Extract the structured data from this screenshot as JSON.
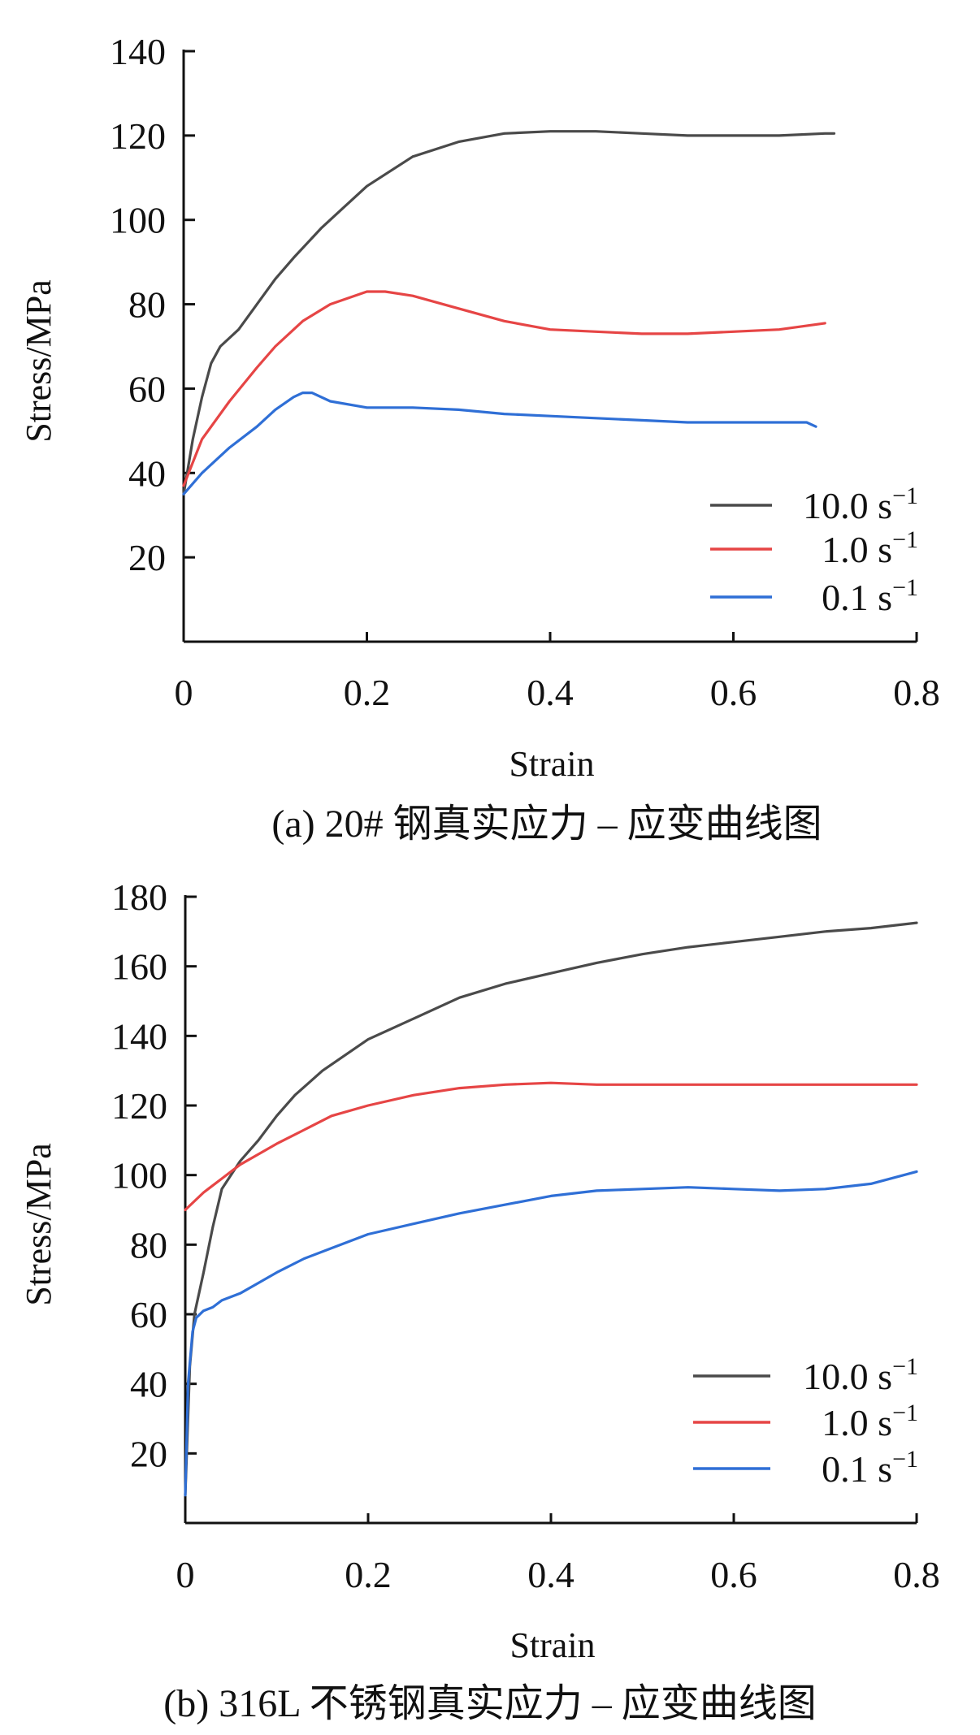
{
  "chart_data": [
    {
      "type": "line",
      "caption": "(a) 20# 钢真实应力 – 应变曲线图",
      "xlabel": "Strain",
      "ylabel": "Stress/MPa",
      "xlim": [
        0,
        0.8
      ],
      "ylim": [
        0,
        140
      ],
      "xticks": [
        "0",
        "0.2",
        "0.4",
        "0.6",
        "0.8"
      ],
      "yticks": [
        "20",
        "40",
        "60",
        "80",
        "100",
        "120",
        "140"
      ],
      "grid": false,
      "legend_position": "bottom-right",
      "series": [
        {
          "name": "10.0 s-1",
          "color": "#4a4a4a",
          "points": [
            [
              0,
              35
            ],
            [
              0.01,
              48
            ],
            [
              0.02,
              58
            ],
            [
              0.03,
              66
            ],
            [
              0.04,
              70
            ],
            [
              0.06,
              74
            ],
            [
              0.08,
              80
            ],
            [
              0.1,
              86
            ],
            [
              0.12,
              91
            ],
            [
              0.15,
              98
            ],
            [
              0.18,
              104
            ],
            [
              0.2,
              108
            ],
            [
              0.25,
              115
            ],
            [
              0.3,
              118.5
            ],
            [
              0.35,
              120.5
            ],
            [
              0.4,
              121
            ],
            [
              0.45,
              121
            ],
            [
              0.5,
              120.5
            ],
            [
              0.55,
              120
            ],
            [
              0.6,
              120
            ],
            [
              0.65,
              120
            ],
            [
              0.7,
              120.5
            ],
            [
              0.71,
              120.5
            ]
          ]
        },
        {
          "name": "1.0 s-1",
          "color": "#e64545",
          "points": [
            [
              0,
              37
            ],
            [
              0.02,
              48
            ],
            [
              0.05,
              57
            ],
            [
              0.08,
              65
            ],
            [
              0.1,
              70
            ],
            [
              0.13,
              76
            ],
            [
              0.16,
              80
            ],
            [
              0.2,
              83
            ],
            [
              0.22,
              83
            ],
            [
              0.25,
              82
            ],
            [
              0.3,
              79
            ],
            [
              0.35,
              76
            ],
            [
              0.4,
              74
            ],
            [
              0.45,
              73.5
            ],
            [
              0.5,
              73
            ],
            [
              0.55,
              73
            ],
            [
              0.6,
              73.5
            ],
            [
              0.65,
              74
            ],
            [
              0.7,
              75.5
            ]
          ]
        },
        {
          "name": "0.1 s-1",
          "color": "#2f6fd6",
          "points": [
            [
              0,
              35
            ],
            [
              0.02,
              40
            ],
            [
              0.05,
              46
            ],
            [
              0.08,
              51
            ],
            [
              0.1,
              55
            ],
            [
              0.12,
              58
            ],
            [
              0.13,
              59
            ],
            [
              0.14,
              59
            ],
            [
              0.16,
              57
            ],
            [
              0.2,
              55.5
            ],
            [
              0.25,
              55.5
            ],
            [
              0.3,
              55
            ],
            [
              0.35,
              54
            ],
            [
              0.4,
              53.5
            ],
            [
              0.45,
              53
            ],
            [
              0.5,
              52.5
            ],
            [
              0.55,
              52
            ],
            [
              0.6,
              52
            ],
            [
              0.65,
              52
            ],
            [
              0.68,
              52
            ],
            [
              0.69,
              51
            ]
          ]
        }
      ]
    },
    {
      "type": "line",
      "caption": "(b) 316L 不锈钢真实应力 – 应变曲线图",
      "xlabel": "Strain",
      "ylabel": "Stress/MPa",
      "xlim": [
        0,
        0.8
      ],
      "ylim": [
        0,
        180
      ],
      "xticks": [
        "0",
        "0.2",
        "0.4",
        "0.6",
        "0.8"
      ],
      "yticks": [
        "20",
        "40",
        "60",
        "80",
        "100",
        "120",
        "140",
        "160",
        "180"
      ],
      "grid": false,
      "legend_position": "bottom-right",
      "series": [
        {
          "name": "10.0 s-1",
          "color": "#4a4a4a",
          "points": [
            [
              0,
              8
            ],
            [
              0.005,
              45
            ],
            [
              0.01,
              60
            ],
            [
              0.02,
              72
            ],
            [
              0.03,
              85
            ],
            [
              0.04,
              96
            ],
            [
              0.06,
              104
            ],
            [
              0.08,
              110
            ],
            [
              0.1,
              117
            ],
            [
              0.12,
              123
            ],
            [
              0.15,
              130
            ],
            [
              0.2,
              139
            ],
            [
              0.25,
              145
            ],
            [
              0.3,
              151
            ],
            [
              0.35,
              155
            ],
            [
              0.4,
              158
            ],
            [
              0.45,
              161
            ],
            [
              0.5,
              163.5
            ],
            [
              0.55,
              165.5
            ],
            [
              0.6,
              167
            ],
            [
              0.65,
              168.5
            ],
            [
              0.7,
              170
            ],
            [
              0.75,
              171
            ],
            [
              0.8,
              172.5
            ]
          ]
        },
        {
          "name": "1.0 s-1",
          "color": "#e64545",
          "points": [
            [
              0,
              90
            ],
            [
              0.02,
              95
            ],
            [
              0.04,
              99
            ],
            [
              0.06,
              103
            ],
            [
              0.08,
              106
            ],
            [
              0.1,
              109
            ],
            [
              0.13,
              113
            ],
            [
              0.16,
              117
            ],
            [
              0.2,
              120
            ],
            [
              0.25,
              123
            ],
            [
              0.3,
              125
            ],
            [
              0.35,
              126
            ],
            [
              0.4,
              126.5
            ],
            [
              0.45,
              126
            ],
            [
              0.5,
              126
            ],
            [
              0.55,
              126
            ],
            [
              0.6,
              126
            ],
            [
              0.65,
              126
            ],
            [
              0.7,
              126
            ],
            [
              0.75,
              126
            ],
            [
              0.8,
              126
            ]
          ]
        },
        {
          "name": "0.1 s-1",
          "color": "#2f6fd6",
          "points": [
            [
              0,
              8
            ],
            [
              0.003,
              40
            ],
            [
              0.008,
              55
            ],
            [
              0.012,
              59
            ],
            [
              0.02,
              61
            ],
            [
              0.03,
              62
            ],
            [
              0.04,
              64
            ],
            [
              0.06,
              66
            ],
            [
              0.08,
              69
            ],
            [
              0.1,
              72
            ],
            [
              0.13,
              76
            ],
            [
              0.16,
              79
            ],
            [
              0.2,
              83
            ],
            [
              0.25,
              86
            ],
            [
              0.3,
              89
            ],
            [
              0.35,
              91.5
            ],
            [
              0.4,
              94
            ],
            [
              0.45,
              95.5
            ],
            [
              0.5,
              96
            ],
            [
              0.55,
              96.5
            ],
            [
              0.6,
              96
            ],
            [
              0.65,
              95.5
            ],
            [
              0.7,
              96
            ],
            [
              0.75,
              97.5
            ],
            [
              0.8,
              101
            ]
          ]
        }
      ]
    }
  ]
}
